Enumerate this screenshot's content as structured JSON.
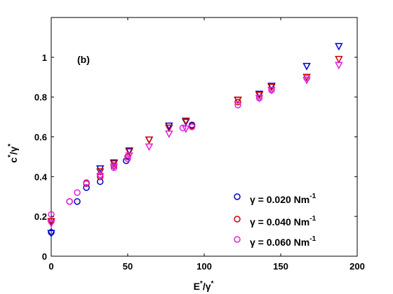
{
  "chart_data": {
    "type": "scatter",
    "panel_label": "(b)",
    "xlabel_main": "E",
    "xlabel_sup1": "*",
    "xlabel_slash": "/γ",
    "xlabel_sup2": "*",
    "ylabel_main": "c",
    "ylabel_sup1": "*",
    "ylabel_slash": "/γ",
    "ylabel_sup2": "*",
    "xlim": [
      0,
      200
    ],
    "ylim": [
      0,
      1.2
    ],
    "xticks": [
      0,
      50,
      100,
      150,
      200
    ],
    "xtick_labels": [
      "0",
      "50",
      "100",
      "150",
      "200"
    ],
    "yticks": [
      0,
      0.2,
      0.4,
      0.6,
      0.8,
      1.0
    ],
    "ytick_labels": [
      "0",
      "0.2",
      "0.4",
      "0.6",
      "0.8",
      "1"
    ],
    "grid": false,
    "legend_position": "bottom-right",
    "series": [
      {
        "legend_label": "γ = 0.020 Nm",
        "legend_sup": "-1",
        "color": "#0000cc",
        "circles": [
          [
            0,
            0.12
          ],
          [
            17,
            0.275
          ],
          [
            23,
            0.345
          ],
          [
            32,
            0.375
          ],
          [
            41,
            0.455
          ],
          [
            49,
            0.48
          ],
          [
            92,
            0.66
          ]
        ],
        "triangles": [
          [
            0,
            0.115
          ],
          [
            32,
            0.44
          ],
          [
            41,
            0.47
          ],
          [
            51,
            0.53
          ],
          [
            64,
            0.585
          ],
          [
            77,
            0.655
          ],
          [
            88,
            0.675
          ],
          [
            122,
            0.785
          ],
          [
            136,
            0.815
          ],
          [
            144,
            0.855
          ],
          [
            167,
            0.955
          ],
          [
            188,
            1.055
          ]
        ]
      },
      {
        "legend_label": "γ = 0.040 Nm",
        "legend_sup": "-1",
        "color": "#cc0000",
        "circles": [
          [
            0,
            0.175
          ],
          [
            12,
            0.275
          ],
          [
            23,
            0.365
          ],
          [
            32,
            0.4
          ],
          [
            41,
            0.455
          ],
          [
            50,
            0.5
          ],
          [
            92,
            0.655
          ],
          [
            122,
            0.775
          ]
        ],
        "triangles": [
          [
            0,
            0.175
          ],
          [
            32,
            0.425
          ],
          [
            41,
            0.465
          ],
          [
            51,
            0.525
          ],
          [
            64,
            0.585
          ],
          [
            77,
            0.645
          ],
          [
            88,
            0.68
          ],
          [
            122,
            0.785
          ],
          [
            136,
            0.81
          ],
          [
            144,
            0.85
          ],
          [
            167,
            0.9
          ],
          [
            188,
            0.99
          ]
        ]
      },
      {
        "legend_label": "γ = 0.060 Nm",
        "legend_sup": "-1",
        "color": "#e020e0",
        "circles": [
          [
            0,
            0.21
          ],
          [
            12,
            0.275
          ],
          [
            17,
            0.32
          ],
          [
            23,
            0.37
          ],
          [
            32,
            0.41
          ],
          [
            41,
            0.445
          ],
          [
            50,
            0.49
          ],
          [
            86,
            0.645
          ],
          [
            92,
            0.65
          ],
          [
            122,
            0.76
          ],
          [
            136,
            0.795
          ],
          [
            144,
            0.835
          ],
          [
            167,
            0.895
          ]
        ],
        "triangles": [
          [
            0,
            0.165
          ],
          [
            32,
            0.4
          ],
          [
            41,
            0.45
          ],
          [
            51,
            0.505
          ],
          [
            64,
            0.55
          ],
          [
            77,
            0.615
          ],
          [
            88,
            0.64
          ],
          [
            136,
            0.795
          ],
          [
            144,
            0.835
          ],
          [
            167,
            0.885
          ],
          [
            188,
            0.96
          ]
        ]
      }
    ]
  }
}
